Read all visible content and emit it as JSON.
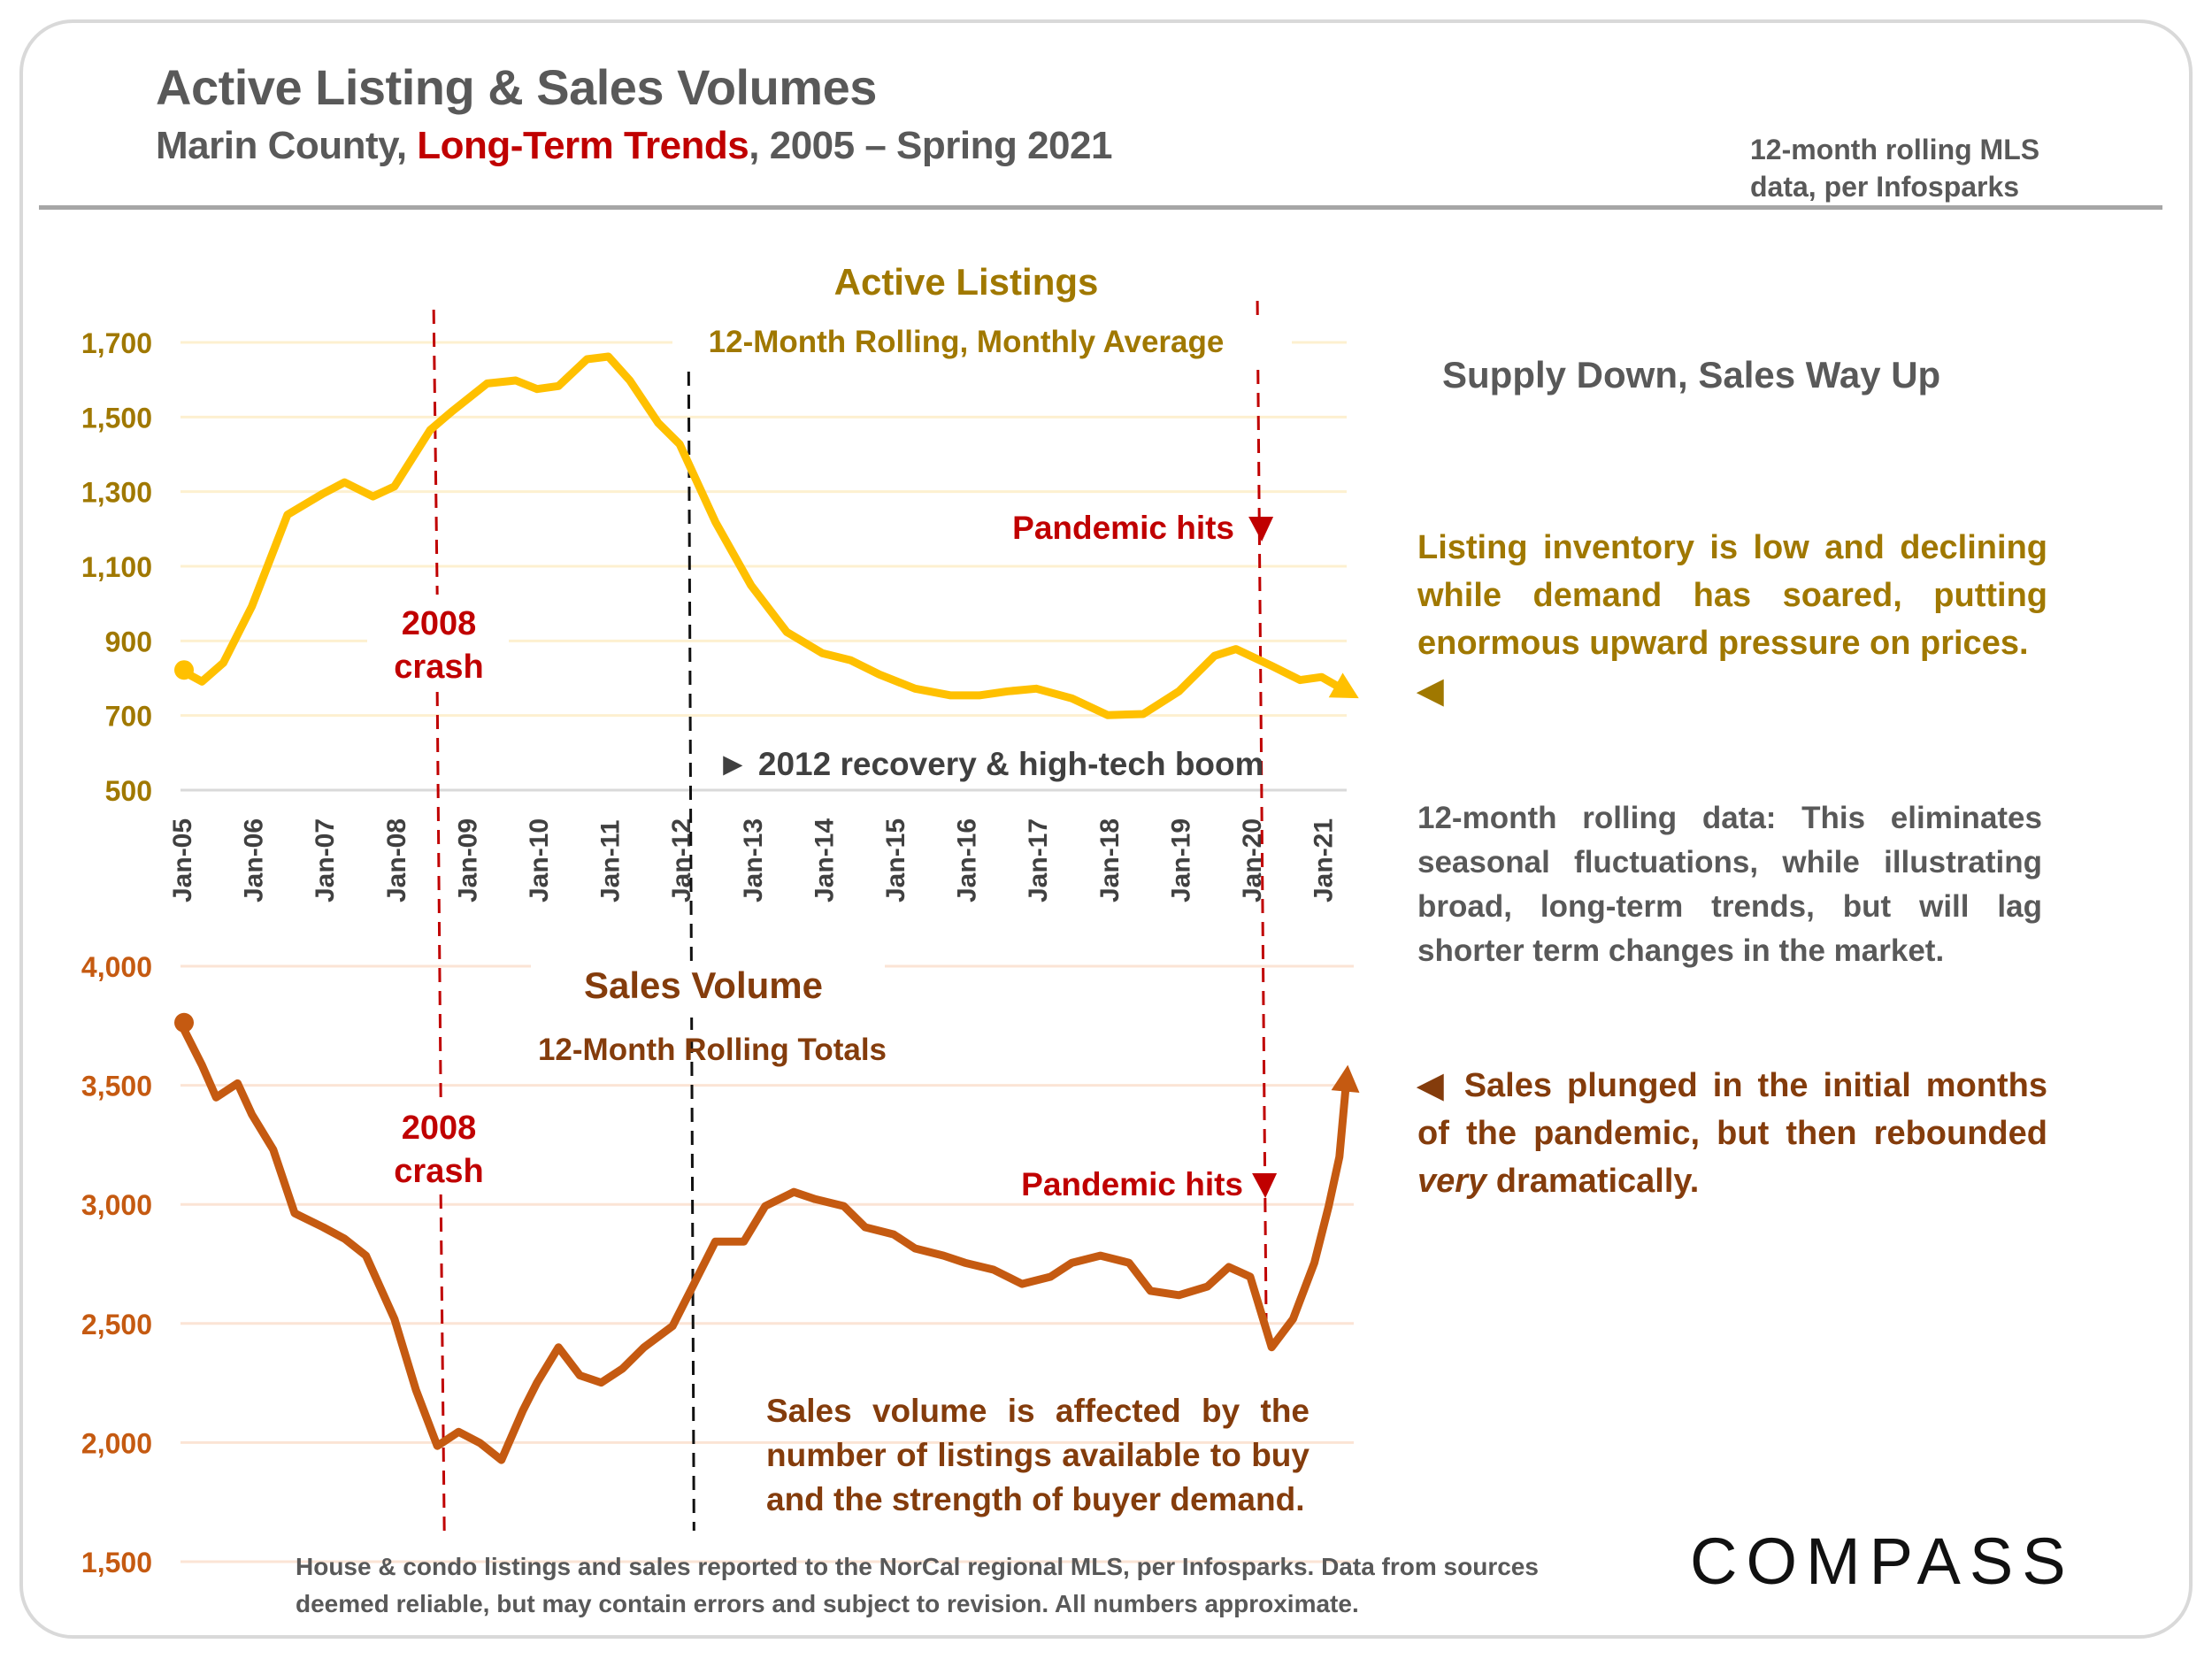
{
  "header": {
    "title": "Active Listing & Sales Volumes",
    "subtitle_prefix": "Marin County, ",
    "subtitle_highlight": "Long-Term Trends",
    "subtitle_suffix": ", 2005 – Spring 2021",
    "source_line1": "12-month rolling MLS",
    "source_line2": "data, per Infosparks"
  },
  "colors": {
    "listings_line": "#ffc000",
    "listings_text": "#a07800",
    "sales_line": "#c55a11",
    "sales_text": "#843c0c",
    "annotation_red": "#c00000",
    "body_gray": "#595959"
  },
  "sidebar": {
    "heading": "Supply Down, Sales Way Up",
    "listing_note": "Listing inventory is low and declining while demand has soared, putting enormous upward pressure on prices.",
    "listing_arrow": "◀",
    "rolling_note": "12-month rolling data: This eliminates seasonal fluctuations, while illustrating broad, long-term trends, but will lag shorter term changes in the market.",
    "sales_arrow": "◀",
    "sales_note_a": " Sales plunged in the initial months of the pandemic, but then rebounded ",
    "sales_note_em": "very",
    "sales_note_b": " dramatically."
  },
  "sales_volume_note": "Sales volume is affected by the number of listings available to buy and the strength of buyer demand.",
  "footnote": "House & condo listings and sales reported to the NorCal regional MLS, per Infosparks. Data from sources deemed reliable, but may contain errors and subject to revision. All numbers approximate.",
  "logo": "COMPASS",
  "chart_data": [
    {
      "type": "line",
      "title": "Active Listings",
      "subtitle": "12-Month Rolling, Monthly Average",
      "xlabel": "",
      "ylabel": "",
      "ylim": [
        500,
        1700
      ],
      "yticks": [
        500,
        700,
        900,
        1100,
        1300,
        1500,
        1700
      ],
      "ytick_labels": [
        "500",
        "700",
        "900",
        "1,100",
        "1,300",
        "1,500",
        "1,700"
      ],
      "xlim": [
        2005.0,
        2021.35
      ],
      "xticks": [
        2005,
        2006,
        2007,
        2008,
        2009,
        2010,
        2011,
        2012,
        2013,
        2014,
        2015,
        2016,
        2017,
        2018,
        2019,
        2020,
        2021
      ],
      "xtick_labels": [
        "Jan-05",
        "Jan-06",
        "Jan-07",
        "Jan-08",
        "Jan-09",
        "Jan-10",
        "Jan-11",
        "Jan-12",
        "Jan-13",
        "Jan-14",
        "Jan-15",
        "Jan-16",
        "Jan-17",
        "Jan-18",
        "Jan-19",
        "Jan-20",
        "Jan-21"
      ],
      "grid": true,
      "series": [
        {
          "name": "Active Listings",
          "x": [
            2005.0,
            2005.3,
            2005.6,
            2006.0,
            2006.5,
            2007.0,
            2007.3,
            2007.7,
            2008.0,
            2008.5,
            2008.8,
            2009.3,
            2009.7,
            2010.0,
            2010.3,
            2010.7,
            2011.0,
            2011.3,
            2011.7,
            2012.0,
            2012.5,
            2013.0,
            2013.5,
            2014.0,
            2014.4,
            2014.8,
            2015.3,
            2015.8,
            2016.2,
            2016.6,
            2017.0,
            2017.5,
            2018.0,
            2018.5,
            2019.0,
            2019.5,
            2019.8,
            2020.3,
            2020.7,
            2021.0,
            2021.35
          ],
          "values": [
            822,
            791,
            841,
            992,
            1238,
            1295,
            1325,
            1287,
            1314,
            1465,
            1514,
            1590,
            1598,
            1575,
            1583,
            1655,
            1662,
            1598,
            1484,
            1427,
            1219,
            1049,
            924,
            867,
            848,
            810,
            772,
            754,
            754,
            765,
            772,
            746,
            701,
            704,
            765,
            860,
            878,
            833,
            795,
            803,
            765
          ]
        }
      ],
      "annotations": [
        {
          "text": "2008 crash",
          "x": 2008.6,
          "color": "#c00000",
          "style": "dashed-vertical"
        },
        {
          "text": "► 2012 recovery & high-tech boom",
          "x": 2012.2,
          "color": "#000000",
          "style": "dashed-vertical"
        },
        {
          "text": "Pandemic hits",
          "x": 2020.15,
          "color": "#c00000",
          "style": "dashed-vertical-arrow"
        }
      ]
    },
    {
      "type": "line",
      "title": "Sales Volume",
      "subtitle": "12-Month Rolling Totals",
      "xlabel": "",
      "ylabel": "",
      "ylim": [
        1500,
        4000
      ],
      "yticks": [
        1500,
        2000,
        2500,
        3000,
        3500,
        4000
      ],
      "ytick_labels": [
        "1,500",
        "2,000",
        "2,500",
        "3,000",
        "3,500",
        "4,000"
      ],
      "xlim": [
        2005.0,
        2021.35
      ],
      "grid": true,
      "series": [
        {
          "name": "Sales Volume",
          "x": [
            2005.0,
            2005.3,
            2005.5,
            2005.8,
            2006.0,
            2006.3,
            2006.6,
            2007.0,
            2007.3,
            2007.6,
            2008.0,
            2008.3,
            2008.6,
            2008.9,
            2009.2,
            2009.5,
            2009.8,
            2010.0,
            2010.3,
            2010.6,
            2010.9,
            2011.2,
            2011.5,
            2011.9,
            2012.2,
            2012.5,
            2012.9,
            2013.2,
            2013.6,
            2013.9,
            2014.3,
            2014.6,
            2015.0,
            2015.3,
            2015.7,
            2016.0,
            2016.4,
            2016.8,
            2017.2,
            2017.5,
            2017.9,
            2018.3,
            2018.6,
            2019.0,
            2019.4,
            2019.7,
            2020.0,
            2020.3,
            2020.6,
            2020.9,
            2021.1,
            2021.25,
            2021.35
          ],
          "values": [
            3763,
            3585,
            3449,
            3508,
            3378,
            3230,
            2963,
            2904,
            2856,
            2785,
            2519,
            2222,
            1986,
            2045,
            1998,
            1927,
            2134,
            2252,
            2400,
            2282,
            2252,
            2311,
            2400,
            2489,
            2666,
            2844,
            2844,
            2993,
            3052,
            3022,
            2993,
            2904,
            2874,
            2815,
            2785,
            2755,
            2726,
            2666,
            2696,
            2755,
            2785,
            2755,
            2637,
            2619,
            2655,
            2737,
            2696,
            2400,
            2519,
            2755,
            2993,
            3200,
            3526
          ]
        }
      ],
      "annotations": [
        {
          "text": "2008 crash",
          "x": 2008.6,
          "color": "#c00000",
          "style": "dashed-vertical"
        },
        {
          "text": "",
          "x": 2012.2,
          "color": "#000000",
          "style": "dashed-vertical"
        },
        {
          "text": "Pandemic hits",
          "x": 2020.15,
          "color": "#c00000",
          "style": "dashed-vertical-arrow"
        }
      ]
    }
  ]
}
